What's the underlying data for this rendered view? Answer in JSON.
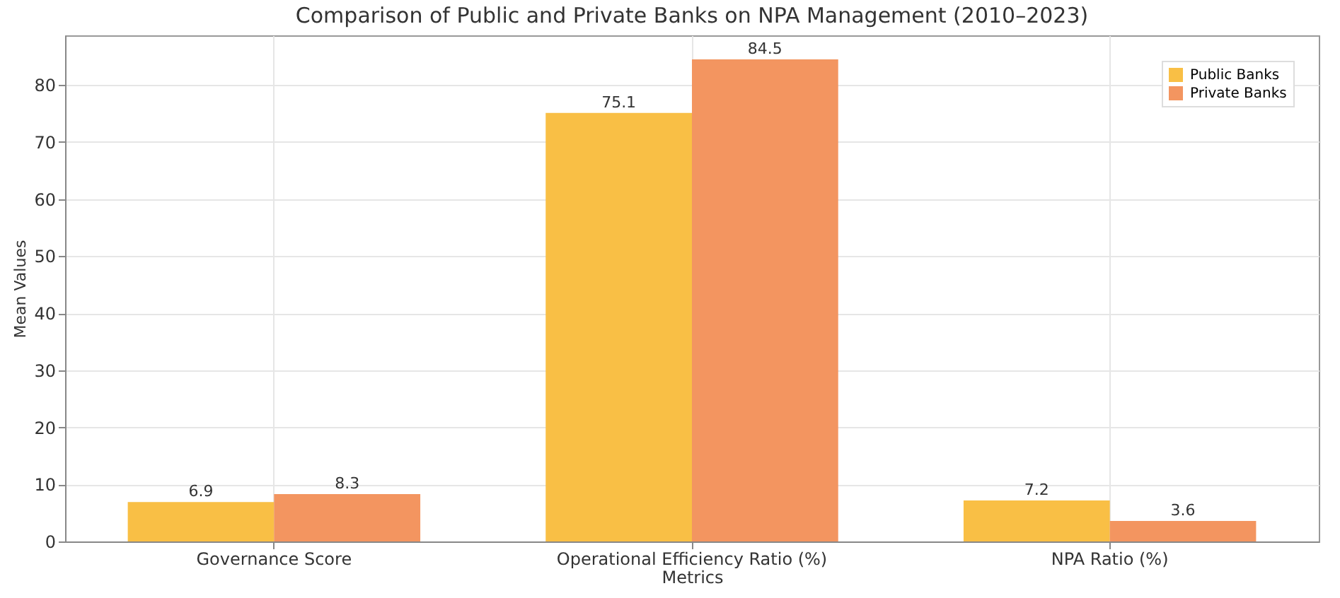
{
  "chart_data": {
    "type": "bar",
    "title": "Comparison of Public and Private Banks on NPA Management (2010–2023)",
    "xlabel": "Metrics",
    "ylabel": "Mean Values",
    "categories": [
      "Governance Score",
      "Operational Efficiency Ratio (%)",
      "NPA Ratio (%)"
    ],
    "series": [
      {
        "name": "Public Banks",
        "color": "#f9bf45",
        "values": [
          6.9,
          75.1,
          7.2
        ]
      },
      {
        "name": "Private Banks",
        "color": "#f39560",
        "values": [
          8.3,
          84.5,
          3.6
        ]
      }
    ],
    "ylim": [
      0,
      88.7
    ],
    "yticks": [
      0,
      10,
      20,
      30,
      40,
      50,
      60,
      70,
      80
    ],
    "grid": true,
    "legend": "top right",
    "data_labels": true
  }
}
